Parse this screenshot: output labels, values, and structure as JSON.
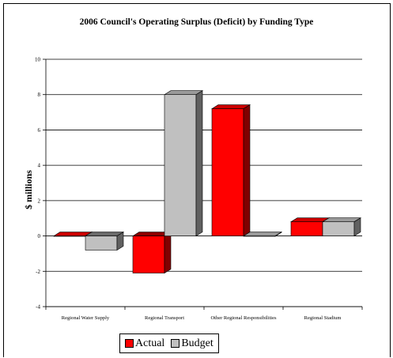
{
  "chart_data": {
    "type": "bar",
    "title": "2006 Council's Operating Surplus (Deficit) by Funding Type",
    "ylabel": "$ millions",
    "xlabel": "",
    "categories": [
      "Regional Water Supply",
      "Regional Transport",
      "Other Regional Responsibilities",
      "Regional Stadium"
    ],
    "series": [
      {
        "name": "Actual",
        "values": [
          0.0,
          -2.1,
          7.2,
          0.8
        ],
        "color": "#ff0000"
      },
      {
        "name": "Budget",
        "values": [
          -0.8,
          8.0,
          0.0,
          0.8
        ],
        "color": "#c0c0c0"
      }
    ],
    "ylim": [
      -4,
      10
    ],
    "yticks": [
      -4,
      -2,
      0,
      2,
      4,
      6,
      8,
      10
    ],
    "grid": true,
    "legend_position": "bottom",
    "style": "3d"
  }
}
